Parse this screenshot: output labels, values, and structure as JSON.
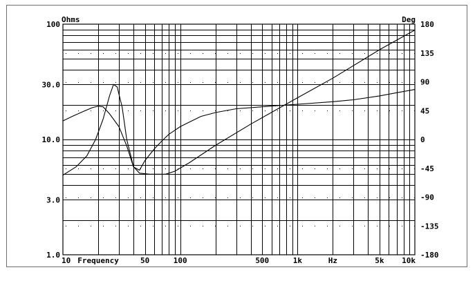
{
  "chart_data": {
    "type": "line",
    "title": "",
    "xlabel": "Frequency",
    "x_unit": "Hz",
    "x_scale": "log",
    "xlim": [
      10,
      10000
    ],
    "ylabel_left": "Ohms",
    "ylim_left": [
      1,
      100
    ],
    "y_scale_left": "log",
    "ylabel_right": "Deg",
    "ylim_right": [
      -180,
      180
    ],
    "grid": true,
    "x_tick_labels": [
      {
        "value": 10,
        "label": "10"
      },
      {
        "value": 50,
        "label": "50"
      },
      {
        "value": 100,
        "label": "100"
      },
      {
        "value": 500,
        "label": "500"
      },
      {
        "value": 1000,
        "label": "1k"
      },
      {
        "value": 5000,
        "label": "5k"
      },
      {
        "value": 10000,
        "label": "10k"
      }
    ],
    "y_left_tick_labels": [
      {
        "value": 100,
        "label": "100"
      },
      {
        "value": 30,
        "label": "30.0"
      },
      {
        "value": 10,
        "label": "10.0"
      },
      {
        "value": 3,
        "label": "3.0"
      },
      {
        "value": 1,
        "label": "1.0"
      }
    ],
    "y_right_tick_labels": [
      {
        "value": 180,
        "label": "180"
      },
      {
        "value": 135,
        "label": "135"
      },
      {
        "value": 90,
        "label": "90"
      },
      {
        "value": 45,
        "label": "45"
      },
      {
        "value": 0,
        "label": "0"
      },
      {
        "value": -45,
        "label": "-45"
      },
      {
        "value": -90,
        "label": "-90"
      },
      {
        "value": -135,
        "label": "-135"
      },
      {
        "value": -180,
        "label": "-180"
      }
    ],
    "series": [
      {
        "axis": "left",
        "x": [
          10,
          13,
          16,
          19,
          22,
          25,
          27,
          29,
          32,
          35,
          40,
          45,
          55,
          65,
          75,
          90,
          120,
          200,
          400,
          1000,
          2000,
          5000,
          10000
        ],
        "y": [
          4.9,
          5.8,
          7.2,
          10,
          15,
          24,
          30,
          28.5,
          19,
          10,
          5.8,
          5.1,
          5.0,
          5.0,
          5.0,
          5.3,
          6.3,
          8.9,
          13.6,
          23,
          34,
          60,
          89
        ]
      },
      {
        "axis": "right",
        "x": [
          10,
          12,
          15,
          18,
          20,
          22,
          25,
          30,
          35,
          40,
          45,
          50,
          60,
          70,
          80,
          100,
          150,
          200,
          300,
          500,
          700,
          1000,
          2000,
          3000,
          5000,
          7000,
          10000
        ],
        "y": [
          29,
          36,
          44,
          50,
          52,
          51,
          40,
          20,
          -10,
          -43,
          -48,
          -33,
          -15,
          -2,
          8,
          20,
          36,
          42,
          48,
          51,
          53,
          55,
          59,
          62,
          68,
          73,
          78
        ]
      }
    ]
  }
}
